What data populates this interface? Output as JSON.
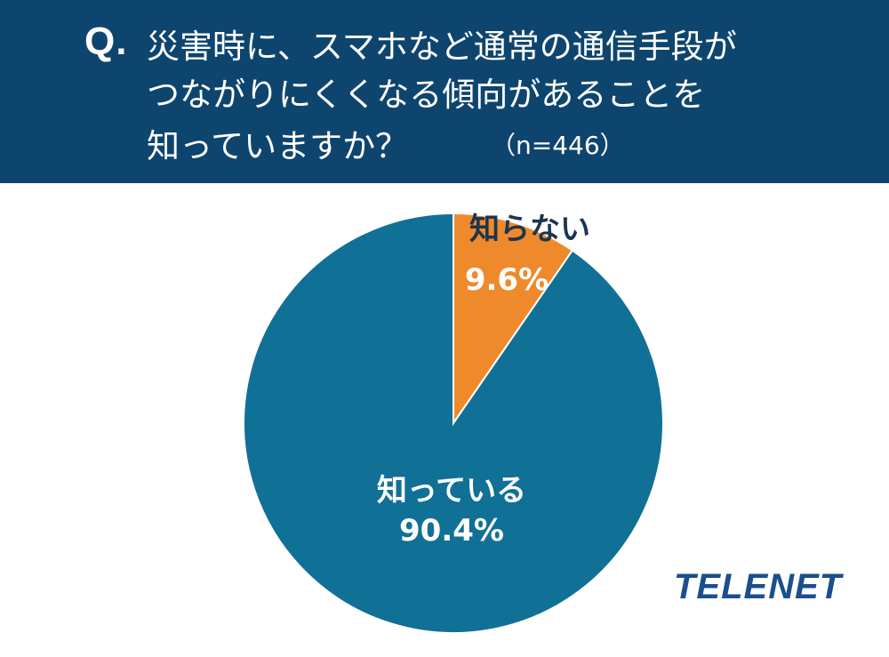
{
  "question": {
    "marker": "Q.",
    "lines": [
      "災害時に、スマホなど通常の通信手段が",
      "つながりにくくなる傾向があることを",
      "知っていますか？"
    ],
    "sample_size": "（n=446）"
  },
  "colors": {
    "header_bg": "#0e456e",
    "know": "#117096",
    "dont_know": "#ee8a2b",
    "logo": "#1a4f8c"
  },
  "chart_data": {
    "type": "pie",
    "start_angle_deg": 0,
    "direction": "clockwise",
    "slices": [
      {
        "label": "知らない",
        "value": 9.6,
        "value_label": "9.6%",
        "color": "#ee8a2b"
      },
      {
        "label": "知っている",
        "value": 90.4,
        "value_label": "90.4%",
        "color": "#117096"
      }
    ]
  },
  "logo": "TELENET"
}
